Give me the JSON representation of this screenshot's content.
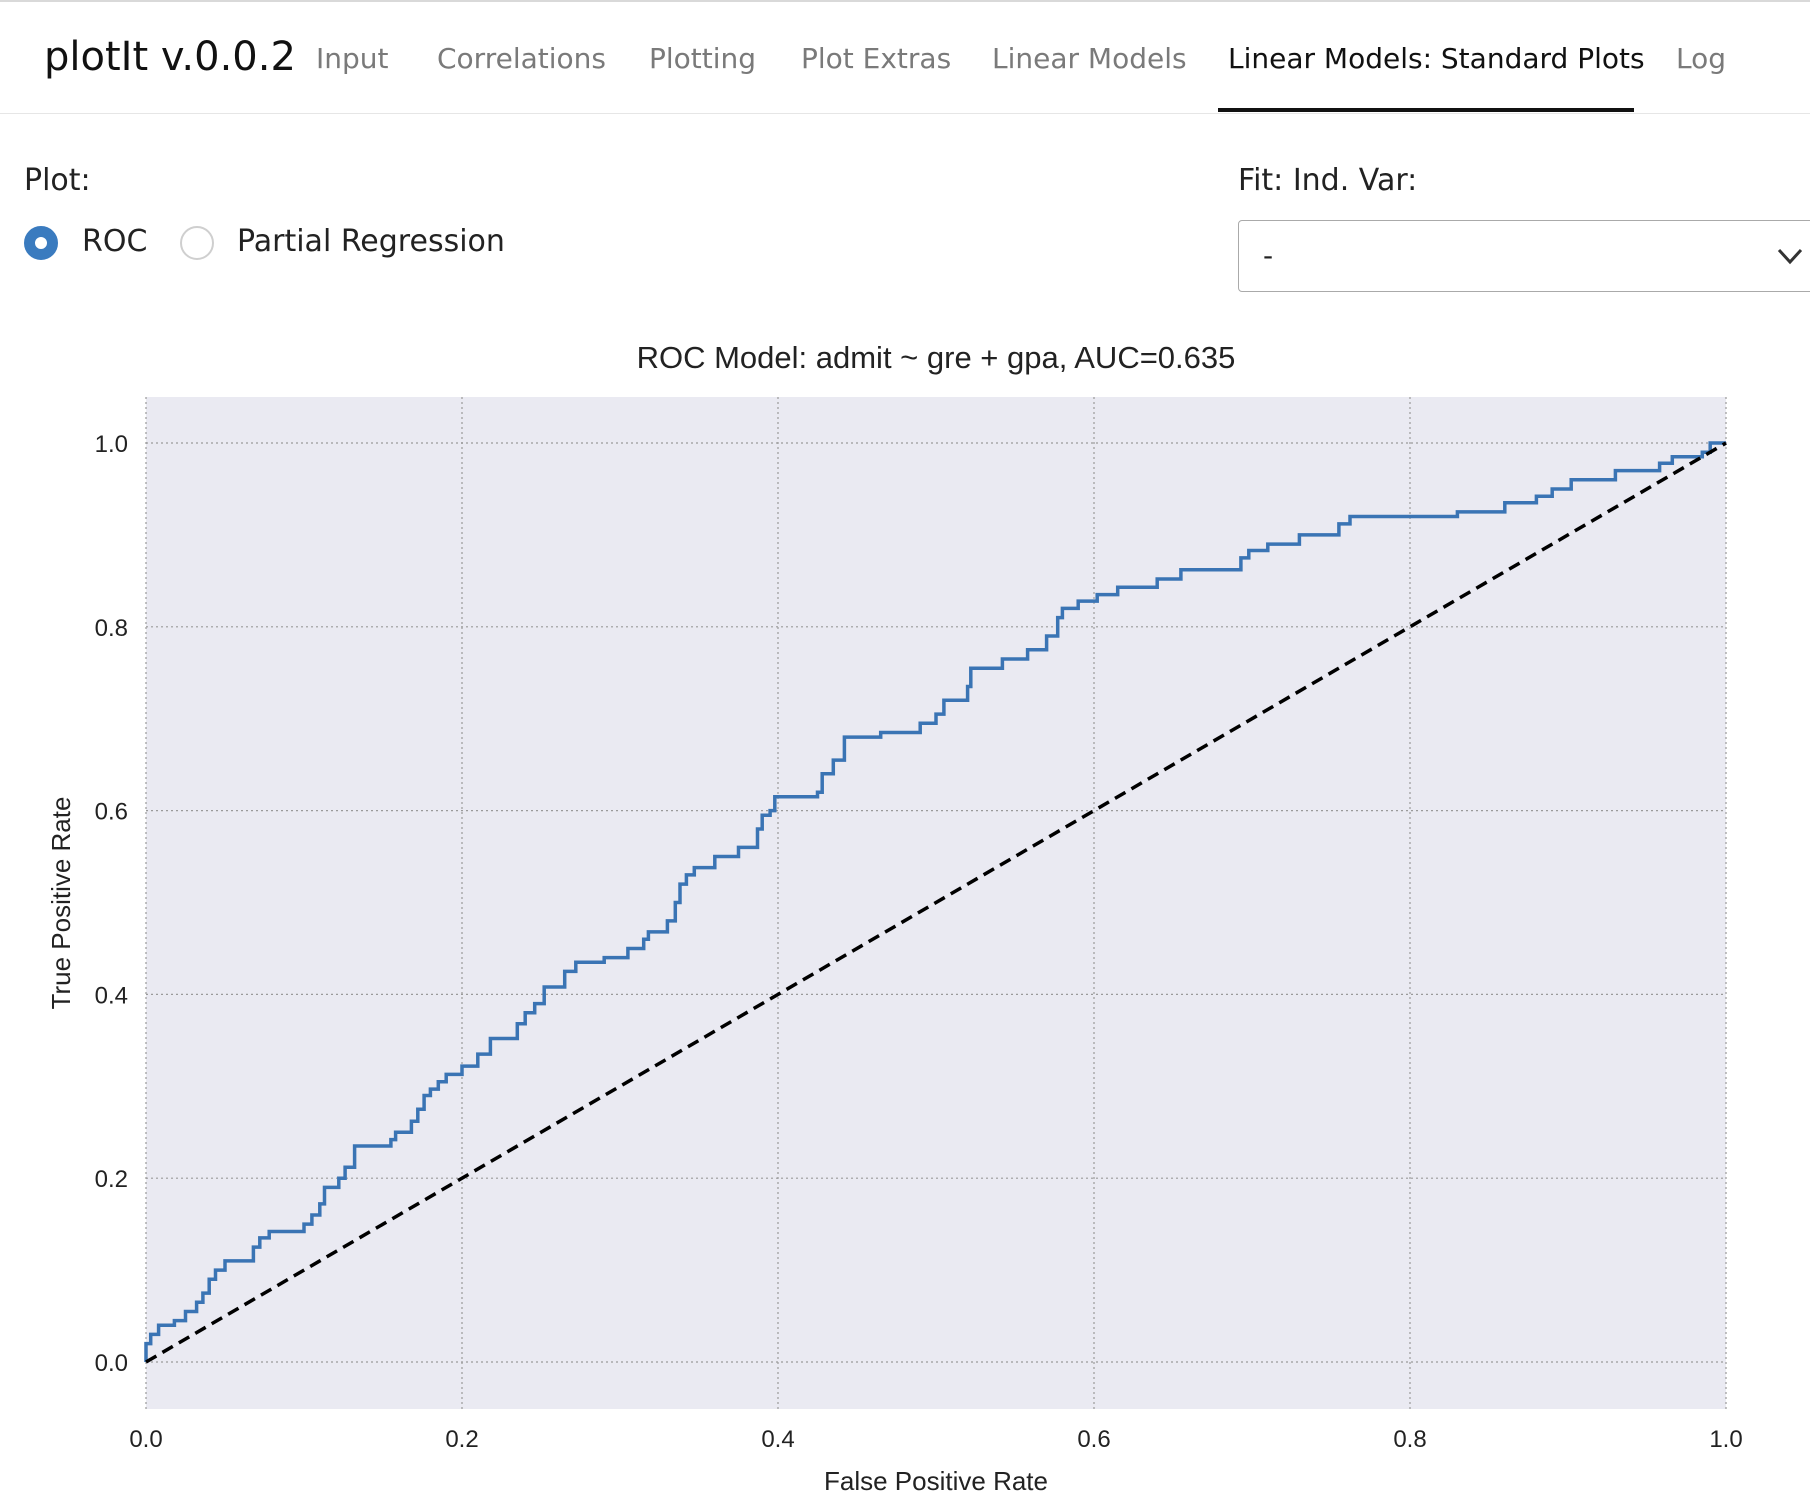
{
  "app": {
    "brand": "plotIt v.0.0.2"
  },
  "nav": {
    "tabs": [
      {
        "label": "Input",
        "active": false
      },
      {
        "label": "Correlations",
        "active": false
      },
      {
        "label": "Plotting",
        "active": false
      },
      {
        "label": "Plot Extras",
        "active": false
      },
      {
        "label": "Linear Models",
        "active": false
      },
      {
        "label": "Linear Models: Standard Plots",
        "active": true
      },
      {
        "label": "Log",
        "active": false
      }
    ]
  },
  "controls": {
    "plot_label": "Plot:",
    "plot_options": [
      {
        "label": "ROC",
        "selected": true
      },
      {
        "label": "Partial Regression",
        "selected": false
      }
    ],
    "fit_label": "Fit: Ind. Var:",
    "fit_value": "-"
  },
  "chart_data": {
    "type": "line",
    "title": "ROC  Model: admit ~ gre + gpa, AUC=0.635",
    "xlabel": "False Positive Rate",
    "ylabel": "True Positive Rate",
    "xlim": [
      0,
      1
    ],
    "ylim": [
      0,
      1
    ],
    "x_ticks": [
      "0.0",
      "0.2",
      "0.4",
      "0.6",
      "0.8",
      "1.0"
    ],
    "y_ticks": [
      "0.0",
      "0.2",
      "0.4",
      "0.6",
      "0.8",
      "1.0"
    ],
    "grid": true,
    "colors": {
      "roc": "#3a74b4",
      "diagonal": "#000000",
      "plot_bg": "#eaeaf2"
    },
    "series": [
      {
        "style": "step",
        "points": [
          [
            0,
            0
          ],
          [
            0,
            0.02
          ],
          [
            0.003,
            0.02
          ],
          [
            0.003,
            0.03
          ],
          [
            0.008,
            0.03
          ],
          [
            0.008,
            0.04
          ],
          [
            0.018,
            0.04
          ],
          [
            0.018,
            0.045
          ],
          [
            0.025,
            0.045
          ],
          [
            0.025,
            0.055
          ],
          [
            0.032,
            0.055
          ],
          [
            0.032,
            0.065
          ],
          [
            0.036,
            0.065
          ],
          [
            0.036,
            0.075
          ],
          [
            0.04,
            0.075
          ],
          [
            0.04,
            0.09
          ],
          [
            0.044,
            0.09
          ],
          [
            0.044,
            0.1
          ],
          [
            0.05,
            0.1
          ],
          [
            0.05,
            0.11
          ],
          [
            0.068,
            0.11
          ],
          [
            0.068,
            0.125
          ],
          [
            0.072,
            0.125
          ],
          [
            0.072,
            0.135
          ],
          [
            0.078,
            0.135
          ],
          [
            0.078,
            0.142
          ],
          [
            0.1,
            0.142
          ],
          [
            0.1,
            0.15
          ],
          [
            0.105,
            0.15
          ],
          [
            0.105,
            0.16
          ],
          [
            0.11,
            0.16
          ],
          [
            0.11,
            0.172
          ],
          [
            0.113,
            0.172
          ],
          [
            0.113,
            0.19
          ],
          [
            0.122,
            0.19
          ],
          [
            0.122,
            0.2
          ],
          [
            0.126,
            0.2
          ],
          [
            0.126,
            0.212
          ],
          [
            0.132,
            0.212
          ],
          [
            0.132,
            0.235
          ],
          [
            0.155,
            0.235
          ],
          [
            0.155,
            0.242
          ],
          [
            0.158,
            0.242
          ],
          [
            0.158,
            0.25
          ],
          [
            0.168,
            0.25
          ],
          [
            0.168,
            0.262
          ],
          [
            0.172,
            0.262
          ],
          [
            0.172,
            0.275
          ],
          [
            0.176,
            0.275
          ],
          [
            0.176,
            0.29
          ],
          [
            0.18,
            0.29
          ],
          [
            0.18,
            0.297
          ],
          [
            0.185,
            0.297
          ],
          [
            0.185,
            0.305
          ],
          [
            0.19,
            0.305
          ],
          [
            0.19,
            0.313
          ],
          [
            0.2,
            0.313
          ],
          [
            0.2,
            0.322
          ],
          [
            0.21,
            0.322
          ],
          [
            0.21,
            0.335
          ],
          [
            0.218,
            0.335
          ],
          [
            0.218,
            0.352
          ],
          [
            0.235,
            0.352
          ],
          [
            0.235,
            0.368
          ],
          [
            0.24,
            0.368
          ],
          [
            0.24,
            0.38
          ],
          [
            0.246,
            0.38
          ],
          [
            0.246,
            0.39
          ],
          [
            0.252,
            0.39
          ],
          [
            0.252,
            0.408
          ],
          [
            0.265,
            0.408
          ],
          [
            0.265,
            0.425
          ],
          [
            0.272,
            0.425
          ],
          [
            0.272,
            0.435
          ],
          [
            0.29,
            0.435
          ],
          [
            0.29,
            0.44
          ],
          [
            0.305,
            0.44
          ],
          [
            0.305,
            0.45
          ],
          [
            0.315,
            0.45
          ],
          [
            0.315,
            0.46
          ],
          [
            0.318,
            0.46
          ],
          [
            0.318,
            0.468
          ],
          [
            0.33,
            0.468
          ],
          [
            0.33,
            0.48
          ],
          [
            0.335,
            0.48
          ],
          [
            0.335,
            0.5
          ],
          [
            0.338,
            0.5
          ],
          [
            0.338,
            0.52
          ],
          [
            0.342,
            0.52
          ],
          [
            0.342,
            0.53
          ],
          [
            0.347,
            0.53
          ],
          [
            0.347,
            0.538
          ],
          [
            0.36,
            0.538
          ],
          [
            0.36,
            0.55
          ],
          [
            0.375,
            0.55
          ],
          [
            0.375,
            0.56
          ],
          [
            0.387,
            0.56
          ],
          [
            0.387,
            0.58
          ],
          [
            0.39,
            0.58
          ],
          [
            0.39,
            0.595
          ],
          [
            0.395,
            0.595
          ],
          [
            0.395,
            0.6
          ],
          [
            0.398,
            0.6
          ],
          [
            0.398,
            0.615
          ],
          [
            0.425,
            0.615
          ],
          [
            0.425,
            0.62
          ],
          [
            0.428,
            0.62
          ],
          [
            0.428,
            0.64
          ],
          [
            0.435,
            0.64
          ],
          [
            0.435,
            0.655
          ],
          [
            0.442,
            0.655
          ],
          [
            0.442,
            0.68
          ],
          [
            0.465,
            0.68
          ],
          [
            0.465,
            0.685
          ],
          [
            0.49,
            0.685
          ],
          [
            0.49,
            0.695
          ],
          [
            0.5,
            0.695
          ],
          [
            0.5,
            0.705
          ],
          [
            0.505,
            0.705
          ],
          [
            0.505,
            0.72
          ],
          [
            0.52,
            0.72
          ],
          [
            0.52,
            0.735
          ],
          [
            0.522,
            0.735
          ],
          [
            0.522,
            0.755
          ],
          [
            0.542,
            0.755
          ],
          [
            0.542,
            0.765
          ],
          [
            0.558,
            0.765
          ],
          [
            0.558,
            0.775
          ],
          [
            0.57,
            0.775
          ],
          [
            0.57,
            0.79
          ],
          [
            0.577,
            0.79
          ],
          [
            0.577,
            0.81
          ],
          [
            0.58,
            0.81
          ],
          [
            0.58,
            0.82
          ],
          [
            0.59,
            0.82
          ],
          [
            0.59,
            0.828
          ],
          [
            0.602,
            0.828
          ],
          [
            0.602,
            0.835
          ],
          [
            0.615,
            0.835
          ],
          [
            0.615,
            0.843
          ],
          [
            0.64,
            0.843
          ],
          [
            0.64,
            0.852
          ],
          [
            0.655,
            0.852
          ],
          [
            0.655,
            0.862
          ],
          [
            0.693,
            0.862
          ],
          [
            0.693,
            0.875
          ],
          [
            0.698,
            0.875
          ],
          [
            0.698,
            0.883
          ],
          [
            0.71,
            0.883
          ],
          [
            0.71,
            0.89
          ],
          [
            0.73,
            0.89
          ],
          [
            0.73,
            0.9
          ],
          [
            0.755,
            0.9
          ],
          [
            0.755,
            0.912
          ],
          [
            0.762,
            0.912
          ],
          [
            0.762,
            0.92
          ],
          [
            0.83,
            0.92
          ],
          [
            0.83,
            0.925
          ],
          [
            0.86,
            0.925
          ],
          [
            0.86,
            0.935
          ],
          [
            0.88,
            0.935
          ],
          [
            0.88,
            0.942
          ],
          [
            0.89,
            0.942
          ],
          [
            0.89,
            0.95
          ],
          [
            0.902,
            0.95
          ],
          [
            0.902,
            0.96
          ],
          [
            0.93,
            0.96
          ],
          [
            0.93,
            0.97
          ],
          [
            0.958,
            0.97
          ],
          [
            0.958,
            0.978
          ],
          [
            0.966,
            0.978
          ],
          [
            0.966,
            0.985
          ],
          [
            0.985,
            0.985
          ],
          [
            0.985,
            0.99
          ],
          [
            0.99,
            0.99
          ],
          [
            0.99,
            1.0
          ],
          [
            1.0,
            1.0
          ]
        ]
      },
      {
        "style": "dashed",
        "points": [
          [
            0,
            0
          ],
          [
            1,
            1
          ]
        ]
      }
    ]
  }
}
